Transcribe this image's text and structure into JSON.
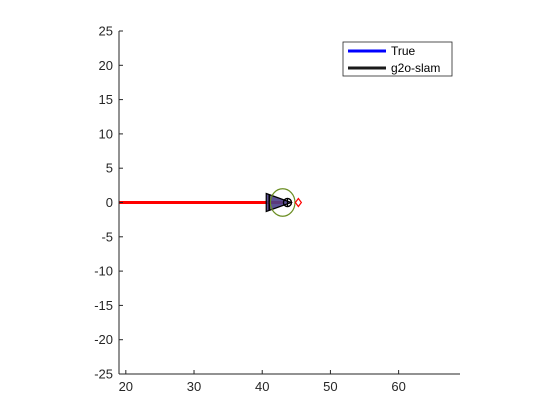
{
  "chart_data": {
    "type": "line",
    "title": "",
    "xlabel": "",
    "ylabel": "",
    "xlim": [
      19,
      69
    ],
    "ylim": [
      -25,
      25
    ],
    "x_ticks": [
      20,
      30,
      40,
      50,
      60
    ],
    "y_ticks": [
      -25,
      -20,
      -15,
      -10,
      -5,
      0,
      5,
      10,
      15,
      20,
      25
    ],
    "x_tick_labels": [
      "20",
      "30",
      "40",
      "50",
      "60"
    ],
    "y_tick_labels": [
      "-25",
      "-20",
      "-15",
      "-10",
      "-5",
      "0",
      "5",
      "10",
      "15",
      "20",
      "25"
    ],
    "grid": false,
    "legend_position": "top-right",
    "series": [
      {
        "name": "True",
        "color": "#0000ff",
        "x": [
          19,
          43
        ],
        "y": [
          0,
          0
        ]
      },
      {
        "name": "g2o-slam",
        "color": "#1a1a1a",
        "x": [
          19,
          43
        ],
        "y": [
          0,
          0
        ]
      },
      {
        "name": "",
        "color": "#ff0000",
        "x": [
          19,
          43
        ],
        "y": [
          0,
          0
        ]
      }
    ],
    "markers": [
      {
        "shape": "vehicle-triangle",
        "x": 42.2,
        "y": 0,
        "stroke": "#000000",
        "fill": "#4a3f8a"
      },
      {
        "shape": "pose-circle",
        "x": 43.7,
        "y": 0,
        "stroke": "#000000"
      },
      {
        "shape": "uncertainty-ellipse",
        "x": 43.0,
        "y": 0,
        "radius_x": 1.8,
        "radius_y": 2.0,
        "stroke": "#6b8e23"
      },
      {
        "shape": "red-diamond",
        "x": 45.3,
        "y": 0,
        "stroke": "#ff0000"
      }
    ]
  }
}
